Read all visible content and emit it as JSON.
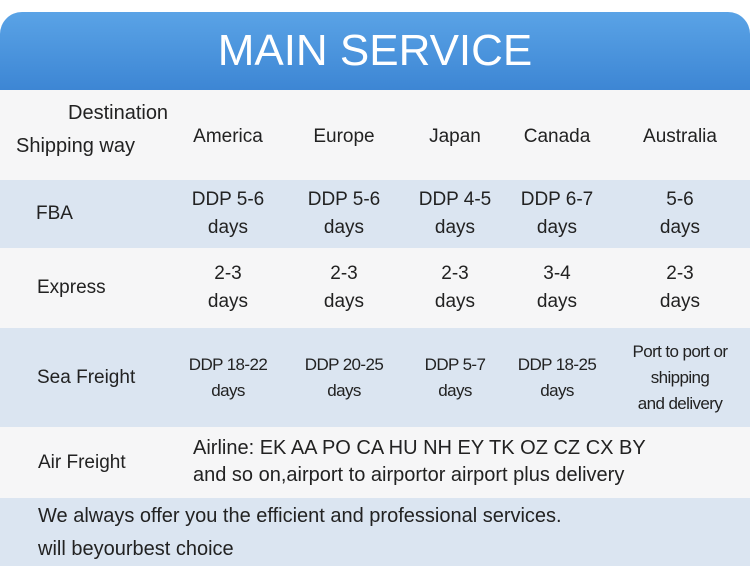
{
  "header": {
    "title": "MAIN SERVICE"
  },
  "table": {
    "corner": [
      "Destination",
      "Shipping way"
    ],
    "columns": [
      "America",
      "Europe",
      "Japan",
      "Canada",
      "Australia"
    ],
    "rows": [
      {
        "label": "FBA",
        "cells": [
          [
            "DDP 5-6",
            "days"
          ],
          [
            "DDP 5-6",
            "days"
          ],
          [
            "DDP 4-5",
            "days"
          ],
          [
            "DDP 6-7",
            "days"
          ],
          [
            "5-6",
            "days"
          ]
        ]
      },
      {
        "label": "Express",
        "cells": [
          [
            "2-3",
            "days"
          ],
          [
            "2-3",
            "days"
          ],
          [
            "2-3",
            "days"
          ],
          [
            "3-4",
            "days"
          ],
          [
            "2-3",
            "days"
          ]
        ]
      },
      {
        "label": "Sea Freight",
        "cells": [
          [
            "DDP 18-22",
            "days"
          ],
          [
            "DDP 20-25",
            "days"
          ],
          [
            "DDP 5-7",
            "days"
          ],
          [
            "DDP 18-25",
            "days"
          ],
          [
            "Port to port or",
            "shipping",
            "and delivery"
          ]
        ]
      }
    ],
    "air_freight": {
      "label": "Air Freight",
      "lines": [
        "Airline: EK AA PO CA HU NH EY TK OZ CZ CX BY",
        "and so on,airport to airportor airport plus delivery"
      ]
    }
  },
  "footer": {
    "lines": [
      "We always offer you the efficient and professional services.",
      "will beyourbest choice"
    ]
  }
}
